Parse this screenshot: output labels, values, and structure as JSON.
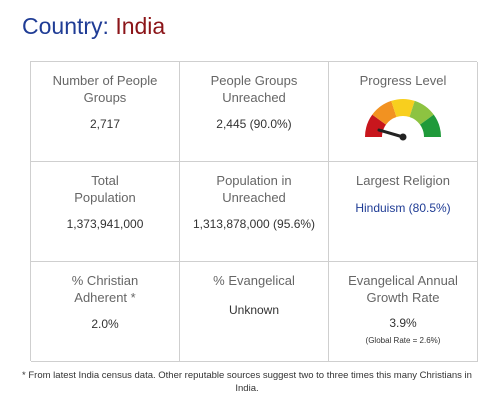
{
  "header": {
    "label": "Country: ",
    "country": "India"
  },
  "stats": {
    "people_groups": {
      "title": "Number of People Groups",
      "value": "2,717"
    },
    "groups_unreached": {
      "title": "People Groups Unreached",
      "value": "2,445 (90.0%)"
    },
    "progress": {
      "title": "Progress Level",
      "level_fraction": 0.2
    },
    "total_population": {
      "title": "Total Population",
      "value": "1,373,941,000"
    },
    "population_unreached": {
      "title": "Population in Unreached",
      "value": "1,313,878,000 (95.6%)"
    },
    "largest_religion": {
      "title": "Largest Religion",
      "value": "Hinduism (80.5%)"
    },
    "christian_adherent": {
      "title": "% Christian Adherent *",
      "value": "2.0%"
    },
    "evangelical": {
      "title": "% Evangelical",
      "value": "Unknown"
    },
    "evangelical_growth": {
      "title": "Evangelical Annual Growth Rate",
      "value": "3.9%",
      "note": "(Global Rate = 2.6%)"
    }
  },
  "gauge_colors": [
    "#c8161d",
    "#f29221",
    "#f8cf1e",
    "#8dc341",
    "#1f9a3a"
  ],
  "footnote": "* From latest India census data. Other reputable sources suggest two to three times this many Christians in India."
}
